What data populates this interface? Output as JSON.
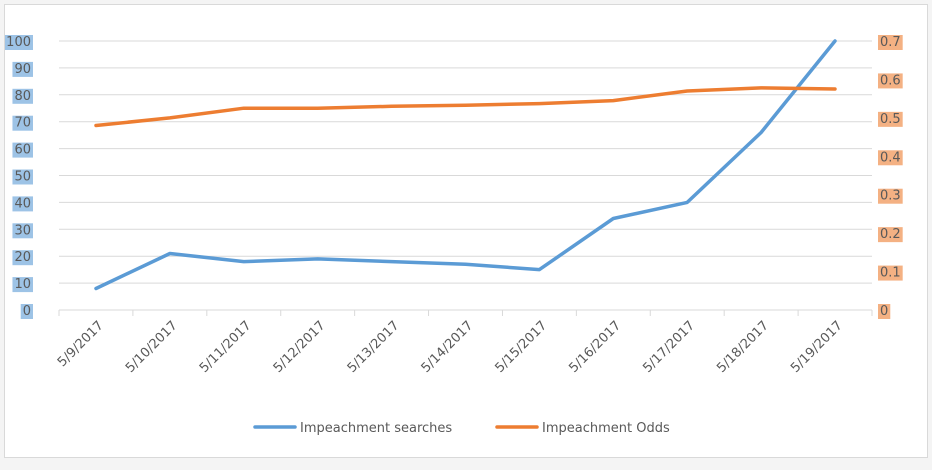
{
  "chart_data": {
    "type": "line",
    "categories": [
      "5/9/2017",
      "5/10/2017",
      "5/11/2017",
      "5/12/2017",
      "5/13/2017",
      "5/14/2017",
      "5/15/2017",
      "5/16/2017",
      "5/17/2017",
      "5/18/2017",
      "5/19/2017"
    ],
    "series": [
      {
        "name": "Impeachment searches",
        "axis": "left",
        "color": "#5b9bd5",
        "values": [
          8,
          21,
          18,
          19,
          18,
          17,
          15,
          34,
          40,
          66,
          100
        ]
      },
      {
        "name": "Impeachment Odds",
        "axis": "right",
        "color": "#ed7d31",
        "values": [
          0.48,
          0.5,
          0.525,
          0.525,
          0.53,
          0.533,
          0.537,
          0.545,
          0.57,
          0.578,
          0.575
        ]
      }
    ],
    "y_left": {
      "min": 0,
      "max": 100,
      "step": 10,
      "ticks": [
        "0",
        "10",
        "20",
        "30",
        "40",
        "50",
        "60",
        "70",
        "80",
        "90",
        "100"
      ],
      "label_bg": "#9dc3e6"
    },
    "y_right": {
      "min": 0,
      "max": 0.7,
      "step": 0.1,
      "ticks": [
        "0",
        "0.1",
        "0.2",
        "0.3",
        "0.4",
        "0.5",
        "0.6",
        "0.7"
      ],
      "label_bg": "#f4b183"
    },
    "grid": true,
    "legend_position": "bottom"
  }
}
